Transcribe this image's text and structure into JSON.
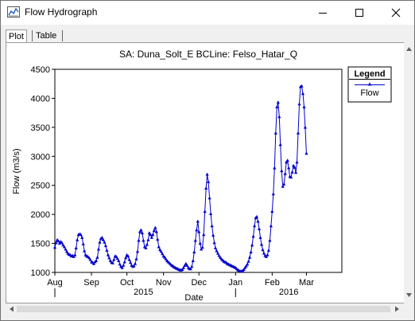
{
  "window": {
    "title": "Flow Hydrograph",
    "icons": [
      "chart-app-icon",
      "minimize-icon",
      "maximize-icon",
      "close-icon"
    ]
  },
  "tabs": [
    {
      "label": "Plot",
      "active": true
    },
    {
      "label": "Table",
      "active": false
    }
  ],
  "chart_data": {
    "type": "line",
    "title": "SA: Duna_Solt_E BCLine: Felso_Hatar_Q",
    "xlabel": "Date",
    "ylabel": "Flow (m3/s)",
    "ylim": [
      1000,
      4500
    ],
    "yticks": [
      "1000",
      "1500",
      "2000",
      "2500",
      "3000",
      "3500",
      "4000",
      "4500"
    ],
    "xlim": [
      "2015-08-01",
      "2016-03-31"
    ],
    "month_ticks": [
      {
        "date": "2015-08-01",
        "label": "Aug"
      },
      {
        "date": "2015-09-01",
        "label": "Sep"
      },
      {
        "date": "2015-10-01",
        "label": "Oct"
      },
      {
        "date": "2015-11-01",
        "label": "Nov"
      },
      {
        "date": "2015-12-01",
        "label": "Dec"
      },
      {
        "date": "2016-01-01",
        "label": "Jan"
      },
      {
        "date": "2016-02-01",
        "label": "Feb"
      },
      {
        "date": "2016-03-01",
        "label": "Mar"
      }
    ],
    "year_labels": [
      {
        "date": "2015-10-15",
        "label": "2015"
      },
      {
        "date": "2016-02-15",
        "label": "2016"
      }
    ],
    "year_markers": [
      "2015-08-01",
      "2016-01-01"
    ],
    "series": [
      {
        "name": "Flow",
        "color": "#0000cc",
        "marker": "triangle",
        "points": [
          [
            "2015-08-01",
            1430
          ],
          [
            "2015-08-02",
            1510
          ],
          [
            "2015-08-03",
            1560
          ],
          [
            "2015-08-04",
            1540
          ],
          [
            "2015-08-05",
            1500
          ],
          [
            "2015-08-06",
            1530
          ],
          [
            "2015-08-07",
            1510
          ],
          [
            "2015-08-08",
            1470
          ],
          [
            "2015-08-09",
            1440
          ],
          [
            "2015-08-10",
            1400
          ],
          [
            "2015-08-11",
            1360
          ],
          [
            "2015-08-12",
            1330
          ],
          [
            "2015-08-13",
            1310
          ],
          [
            "2015-08-14",
            1300
          ],
          [
            "2015-08-15",
            1280
          ],
          [
            "2015-08-16",
            1290
          ],
          [
            "2015-08-17",
            1270
          ],
          [
            "2015-08-18",
            1300
          ],
          [
            "2015-08-19",
            1420
          ],
          [
            "2015-08-20",
            1560
          ],
          [
            "2015-08-21",
            1650
          ],
          [
            "2015-08-22",
            1660
          ],
          [
            "2015-08-23",
            1650
          ],
          [
            "2015-08-24",
            1600
          ],
          [
            "2015-08-25",
            1490
          ],
          [
            "2015-08-26",
            1370
          ],
          [
            "2015-08-27",
            1300
          ],
          [
            "2015-08-28",
            1280
          ],
          [
            "2015-08-29",
            1270
          ],
          [
            "2015-08-30",
            1250
          ],
          [
            "2015-08-31",
            1220
          ],
          [
            "2015-09-01",
            1180
          ],
          [
            "2015-09-02",
            1170
          ],
          [
            "2015-09-03",
            1150
          ],
          [
            "2015-09-04",
            1180
          ],
          [
            "2015-09-05",
            1200
          ],
          [
            "2015-09-06",
            1260
          ],
          [
            "2015-09-07",
            1400
          ],
          [
            "2015-09-08",
            1520
          ],
          [
            "2015-09-09",
            1580
          ],
          [
            "2015-09-10",
            1600
          ],
          [
            "2015-09-11",
            1560
          ],
          [
            "2015-09-12",
            1520
          ],
          [
            "2015-09-13",
            1460
          ],
          [
            "2015-09-14",
            1380
          ],
          [
            "2015-09-15",
            1300
          ],
          [
            "2015-09-16",
            1250
          ],
          [
            "2015-09-17",
            1200
          ],
          [
            "2015-09-18",
            1170
          ],
          [
            "2015-09-19",
            1160
          ],
          [
            "2015-09-20",
            1220
          ],
          [
            "2015-09-21",
            1280
          ],
          [
            "2015-09-22",
            1270
          ],
          [
            "2015-09-23",
            1240
          ],
          [
            "2015-09-24",
            1200
          ],
          [
            "2015-09-25",
            1140
          ],
          [
            "2015-09-26",
            1100
          ],
          [
            "2015-09-27",
            1080
          ],
          [
            "2015-09-28",
            1120
          ],
          [
            "2015-09-29",
            1180
          ],
          [
            "2015-09-30",
            1250
          ],
          [
            "2015-10-01",
            1300
          ],
          [
            "2015-10-02",
            1280
          ],
          [
            "2015-10-03",
            1220
          ],
          [
            "2015-10-04",
            1170
          ],
          [
            "2015-10-05",
            1120
          ],
          [
            "2015-10-06",
            1100
          ],
          [
            "2015-10-07",
            1110
          ],
          [
            "2015-10-08",
            1150
          ],
          [
            "2015-10-09",
            1230
          ],
          [
            "2015-10-10",
            1360
          ],
          [
            "2015-10-11",
            1550
          ],
          [
            "2015-10-12",
            1700
          ],
          [
            "2015-10-13",
            1730
          ],
          [
            "2015-10-14",
            1680
          ],
          [
            "2015-10-15",
            1550
          ],
          [
            "2015-10-16",
            1440
          ],
          [
            "2015-10-17",
            1420
          ],
          [
            "2015-10-18",
            1480
          ],
          [
            "2015-10-19",
            1560
          ],
          [
            "2015-10-20",
            1680
          ],
          [
            "2015-10-21",
            1650
          ],
          [
            "2015-10-22",
            1600
          ],
          [
            "2015-10-23",
            1650
          ],
          [
            "2015-10-24",
            1720
          ],
          [
            "2015-10-25",
            1770
          ],
          [
            "2015-10-26",
            1700
          ],
          [
            "2015-10-27",
            1570
          ],
          [
            "2015-10-28",
            1440
          ],
          [
            "2015-10-29",
            1390
          ],
          [
            "2015-10-30",
            1360
          ],
          [
            "2015-10-31",
            1320
          ],
          [
            "2015-11-01",
            1280
          ],
          [
            "2015-11-02",
            1260
          ],
          [
            "2015-11-03",
            1230
          ],
          [
            "2015-11-04",
            1200
          ],
          [
            "2015-11-05",
            1180
          ],
          [
            "2015-11-06",
            1160
          ],
          [
            "2015-11-07",
            1140
          ],
          [
            "2015-11-08",
            1120
          ],
          [
            "2015-11-09",
            1110
          ],
          [
            "2015-11-10",
            1090
          ],
          [
            "2015-11-11",
            1080
          ],
          [
            "2015-11-12",
            1070
          ],
          [
            "2015-11-13",
            1060
          ],
          [
            "2015-11-14",
            1050
          ],
          [
            "2015-11-15",
            1040
          ],
          [
            "2015-11-16",
            1040
          ],
          [
            "2015-11-17",
            1050
          ],
          [
            "2015-11-18",
            1080
          ],
          [
            "2015-11-19",
            1120
          ],
          [
            "2015-11-20",
            1150
          ],
          [
            "2015-11-21",
            1120
          ],
          [
            "2015-11-22",
            1080
          ],
          [
            "2015-11-23",
            1060
          ],
          [
            "2015-11-24",
            1060
          ],
          [
            "2015-11-25",
            1100
          ],
          [
            "2015-11-26",
            1200
          ],
          [
            "2015-11-27",
            1350
          ],
          [
            "2015-11-28",
            1550
          ],
          [
            "2015-11-29",
            1730
          ],
          [
            "2015-11-30",
            1880
          ],
          [
            "2015-12-01",
            1700
          ],
          [
            "2015-12-02",
            1500
          ],
          [
            "2015-12-03",
            1400
          ],
          [
            "2015-12-04",
            1430
          ],
          [
            "2015-12-05",
            1650
          ],
          [
            "2015-12-06",
            2050
          ],
          [
            "2015-12-07",
            2450
          ],
          [
            "2015-12-08",
            2690
          ],
          [
            "2015-12-09",
            2560
          ],
          [
            "2015-12-10",
            2280
          ],
          [
            "2015-12-11",
            2010
          ],
          [
            "2015-12-12",
            1800
          ],
          [
            "2015-12-13",
            1640
          ],
          [
            "2015-12-14",
            1510
          ],
          [
            "2015-12-15",
            1420
          ],
          [
            "2015-12-16",
            1370
          ],
          [
            "2015-12-17",
            1330
          ],
          [
            "2015-12-18",
            1290
          ],
          [
            "2015-12-19",
            1260
          ],
          [
            "2015-12-20",
            1230
          ],
          [
            "2015-12-21",
            1210
          ],
          [
            "2015-12-22",
            1190
          ],
          [
            "2015-12-23",
            1180
          ],
          [
            "2015-12-24",
            1170
          ],
          [
            "2015-12-25",
            1150
          ],
          [
            "2015-12-26",
            1140
          ],
          [
            "2015-12-27",
            1130
          ],
          [
            "2015-12-28",
            1120
          ],
          [
            "2015-12-29",
            1110
          ],
          [
            "2015-12-30",
            1100
          ],
          [
            "2015-12-31",
            1090
          ],
          [
            "2016-01-01",
            1080
          ],
          [
            "2016-01-02",
            1060
          ],
          [
            "2016-01-03",
            1040
          ],
          [
            "2016-01-04",
            1030
          ],
          [
            "2016-01-05",
            1020
          ],
          [
            "2016-01-06",
            1020
          ],
          [
            "2016-01-07",
            1030
          ],
          [
            "2016-01-08",
            1050
          ],
          [
            "2016-01-09",
            1080
          ],
          [
            "2016-01-10",
            1110
          ],
          [
            "2016-01-11",
            1140
          ],
          [
            "2016-01-12",
            1190
          ],
          [
            "2016-01-13",
            1260
          ],
          [
            "2016-01-14",
            1350
          ],
          [
            "2016-01-15",
            1470
          ],
          [
            "2016-01-16",
            1620
          ],
          [
            "2016-01-17",
            1800
          ],
          [
            "2016-01-18",
            1940
          ],
          [
            "2016-01-19",
            1960
          ],
          [
            "2016-01-20",
            1880
          ],
          [
            "2016-01-21",
            1750
          ],
          [
            "2016-01-22",
            1600
          ],
          [
            "2016-01-23",
            1480
          ],
          [
            "2016-01-24",
            1390
          ],
          [
            "2016-01-25",
            1330
          ],
          [
            "2016-01-26",
            1290
          ],
          [
            "2016-01-27",
            1270
          ],
          [
            "2016-01-28",
            1300
          ],
          [
            "2016-01-29",
            1380
          ],
          [
            "2016-01-30",
            1550
          ],
          [
            "2016-01-31",
            1800
          ],
          [
            "2016-02-01",
            2050
          ],
          [
            "2016-02-02",
            2350
          ],
          [
            "2016-02-03",
            2800
          ],
          [
            "2016-02-04",
            3400
          ],
          [
            "2016-02-05",
            3850
          ],
          [
            "2016-02-06",
            3930
          ],
          [
            "2016-02-07",
            3680
          ],
          [
            "2016-02-08",
            3200
          ],
          [
            "2016-02-09",
            2750
          ],
          [
            "2016-02-10",
            2480
          ],
          [
            "2016-02-11",
            2520
          ],
          [
            "2016-02-12",
            2700
          ],
          [
            "2016-02-13",
            2900
          ],
          [
            "2016-02-14",
            2930
          ],
          [
            "2016-02-15",
            2800
          ],
          [
            "2016-02-16",
            2650
          ],
          [
            "2016-02-17",
            2640
          ],
          [
            "2016-02-18",
            2730
          ],
          [
            "2016-02-19",
            2840
          ],
          [
            "2016-02-20",
            2810
          ],
          [
            "2016-02-21",
            2720
          ],
          [
            "2016-02-22",
            2900
          ],
          [
            "2016-02-23",
            3400
          ],
          [
            "2016-02-24",
            3900
          ],
          [
            "2016-02-25",
            4200
          ],
          [
            "2016-02-26",
            4210
          ],
          [
            "2016-02-27",
            4080
          ],
          [
            "2016-02-28",
            3850
          ],
          [
            "2016-02-29",
            3500
          ],
          [
            "2016-03-01",
            3050
          ]
        ]
      }
    ],
    "legend": {
      "title": "Legend",
      "entry": "Flow",
      "position": "top-right"
    },
    "grid": false
  }
}
